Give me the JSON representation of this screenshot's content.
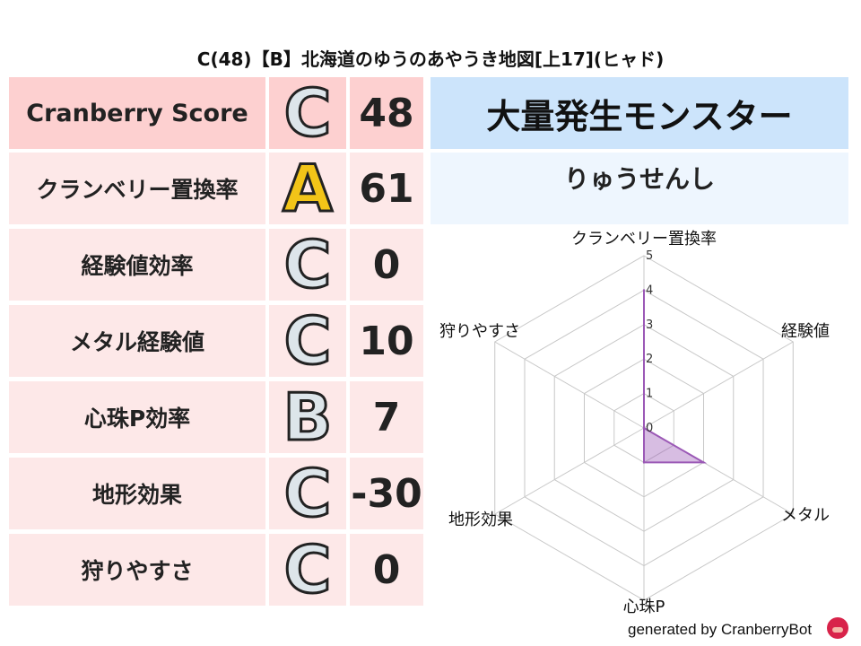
{
  "title": "C(48)【B】北海道のゆうのあやうき地図[上17](ヒャド)",
  "rows": [
    {
      "label": "Cranberry Score",
      "grade": "C",
      "value": "48"
    },
    {
      "label": "クランベリー置換率",
      "grade": "A",
      "value": "61"
    },
    {
      "label": "経験値効率",
      "grade": "C",
      "value": "0"
    },
    {
      "label": "メタル経験値",
      "grade": "C",
      "value": "10"
    },
    {
      "label": "心珠P効率",
      "grade": "B",
      "value": "7"
    },
    {
      "label": "地形効果",
      "grade": "C",
      "value": "-30"
    },
    {
      "label": "狩りやすさ",
      "grade": "C",
      "value": "0"
    }
  ],
  "monster_header": "大量発生モンスター",
  "monster_name": "りゅうせんし",
  "footer": "generated by CranberryBot",
  "chart_data": {
    "type": "radar",
    "axes": [
      "クランベリー置換率",
      "経験値",
      "メタル",
      "心珠P",
      "地形効果",
      "狩りやすさ"
    ],
    "values": [
      4,
      0,
      2,
      1,
      0,
      0
    ],
    "rlim": [
      0,
      5
    ],
    "ticks": [
      "0",
      "1",
      "2",
      "3",
      "4",
      "5"
    ],
    "color": "#9b59b6",
    "grid": true
  }
}
